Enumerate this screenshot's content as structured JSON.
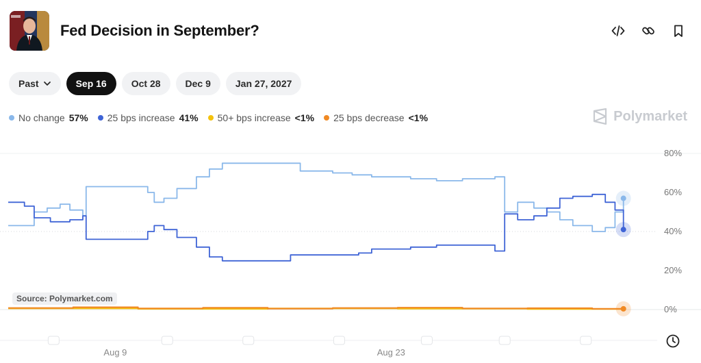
{
  "header": {
    "title": "Fed Decision in September?",
    "avatar_icon": "portrait-avatar",
    "actions": [
      {
        "icon": "embed-code-icon"
      },
      {
        "icon": "link-icon"
      },
      {
        "icon": "bookmark-icon"
      }
    ]
  },
  "tabs": [
    {
      "label": "Past",
      "active": false,
      "dropdown": true
    },
    {
      "label": "Sep 16",
      "active": true
    },
    {
      "label": "Oct 28",
      "active": false
    },
    {
      "label": "Dec 9",
      "active": false
    },
    {
      "label": "Jan 27, 2027",
      "active": false
    }
  ],
  "legend": [
    {
      "label": "No change",
      "pct": "57%",
      "color": "#8ab8ea"
    },
    {
      "label": "25 bps increase",
      "pct": "41%",
      "color": "#3f64d6"
    },
    {
      "label": "50+ bps increase",
      "pct": "<1%",
      "color": "#f4c20d"
    },
    {
      "label": "25 bps decrease",
      "pct": "<1%",
      "color": "#f08a24"
    }
  ],
  "brand": "Polymarket",
  "source": "Source: Polymarket.com",
  "chart_data": {
    "type": "line",
    "y_ticks": [
      "80%",
      "60%",
      "40%",
      "20%",
      "0%"
    ],
    "y_values": [
      80,
      60,
      40,
      20,
      0
    ],
    "ylim": [
      0,
      80
    ],
    "x_tick_labels": [
      "Aug 9",
      "Aug 23"
    ],
    "x_tick_positions": [
      0.165,
      0.59
    ],
    "legend_position": "top-left",
    "grid": false,
    "series": [
      {
        "name": "No change",
        "color": "#8ab8ea",
        "points": [
          [
            0,
            43
          ],
          [
            0.03,
            43
          ],
          [
            0.04,
            50
          ],
          [
            0.06,
            52
          ],
          [
            0.08,
            54
          ],
          [
            0.095,
            51
          ],
          [
            0.115,
            48
          ],
          [
            0.12,
            63
          ],
          [
            0.2,
            63
          ],
          [
            0.215,
            60
          ],
          [
            0.225,
            55
          ],
          [
            0.24,
            57
          ],
          [
            0.26,
            62
          ],
          [
            0.29,
            68
          ],
          [
            0.31,
            72
          ],
          [
            0.33,
            75
          ],
          [
            0.43,
            75
          ],
          [
            0.45,
            71
          ],
          [
            0.5,
            70
          ],
          [
            0.53,
            69
          ],
          [
            0.56,
            68
          ],
          [
            0.62,
            67
          ],
          [
            0.66,
            66
          ],
          [
            0.7,
            67
          ],
          [
            0.75,
            68
          ],
          [
            0.755,
            68
          ],
          [
            0.765,
            50
          ],
          [
            0.785,
            55
          ],
          [
            0.81,
            52
          ],
          [
            0.83,
            50
          ],
          [
            0.85,
            46
          ],
          [
            0.87,
            43
          ],
          [
            0.9,
            40
          ],
          [
            0.92,
            42
          ],
          [
            0.935,
            50
          ],
          [
            0.948,
            57
          ]
        ]
      },
      {
        "name": "25 bps increase",
        "color": "#3f64d6",
        "points": [
          [
            0,
            55
          ],
          [
            0.025,
            53
          ],
          [
            0.04,
            47
          ],
          [
            0.065,
            45
          ],
          [
            0.095,
            46
          ],
          [
            0.115,
            48
          ],
          [
            0.12,
            36
          ],
          [
            0.2,
            36
          ],
          [
            0.215,
            40
          ],
          [
            0.225,
            43
          ],
          [
            0.24,
            41
          ],
          [
            0.26,
            37
          ],
          [
            0.29,
            32
          ],
          [
            0.31,
            27
          ],
          [
            0.33,
            25
          ],
          [
            0.42,
            25
          ],
          [
            0.435,
            28
          ],
          [
            0.5,
            28
          ],
          [
            0.54,
            29
          ],
          [
            0.56,
            31
          ],
          [
            0.62,
            32
          ],
          [
            0.66,
            33
          ],
          [
            0.7,
            33
          ],
          [
            0.75,
            30
          ],
          [
            0.755,
            30
          ],
          [
            0.765,
            49
          ],
          [
            0.785,
            46
          ],
          [
            0.81,
            48
          ],
          [
            0.83,
            52
          ],
          [
            0.85,
            57
          ],
          [
            0.87,
            58
          ],
          [
            0.9,
            59
          ],
          [
            0.92,
            55
          ],
          [
            0.935,
            51
          ],
          [
            0.948,
            41
          ]
        ]
      },
      {
        "name": "50+ bps increase",
        "color": "#f4c20d",
        "points": [
          [
            0,
            0.6
          ],
          [
            0.2,
            0.4
          ],
          [
            0.4,
            0.6
          ],
          [
            0.6,
            0.5
          ],
          [
            0.8,
            0.3
          ],
          [
            0.948,
            0.3
          ]
        ]
      },
      {
        "name": "25 bps decrease",
        "color": "#f08a24",
        "points": [
          [
            0,
            0.8
          ],
          [
            0.1,
            1.2
          ],
          [
            0.2,
            0.6
          ],
          [
            0.3,
            0.9
          ],
          [
            0.4,
            0.5
          ],
          [
            0.5,
            0.8
          ],
          [
            0.6,
            1
          ],
          [
            0.7,
            0.6
          ],
          [
            0.8,
            0.7
          ],
          [
            0.9,
            0.4
          ],
          [
            0.948,
            0.4
          ]
        ]
      }
    ]
  }
}
